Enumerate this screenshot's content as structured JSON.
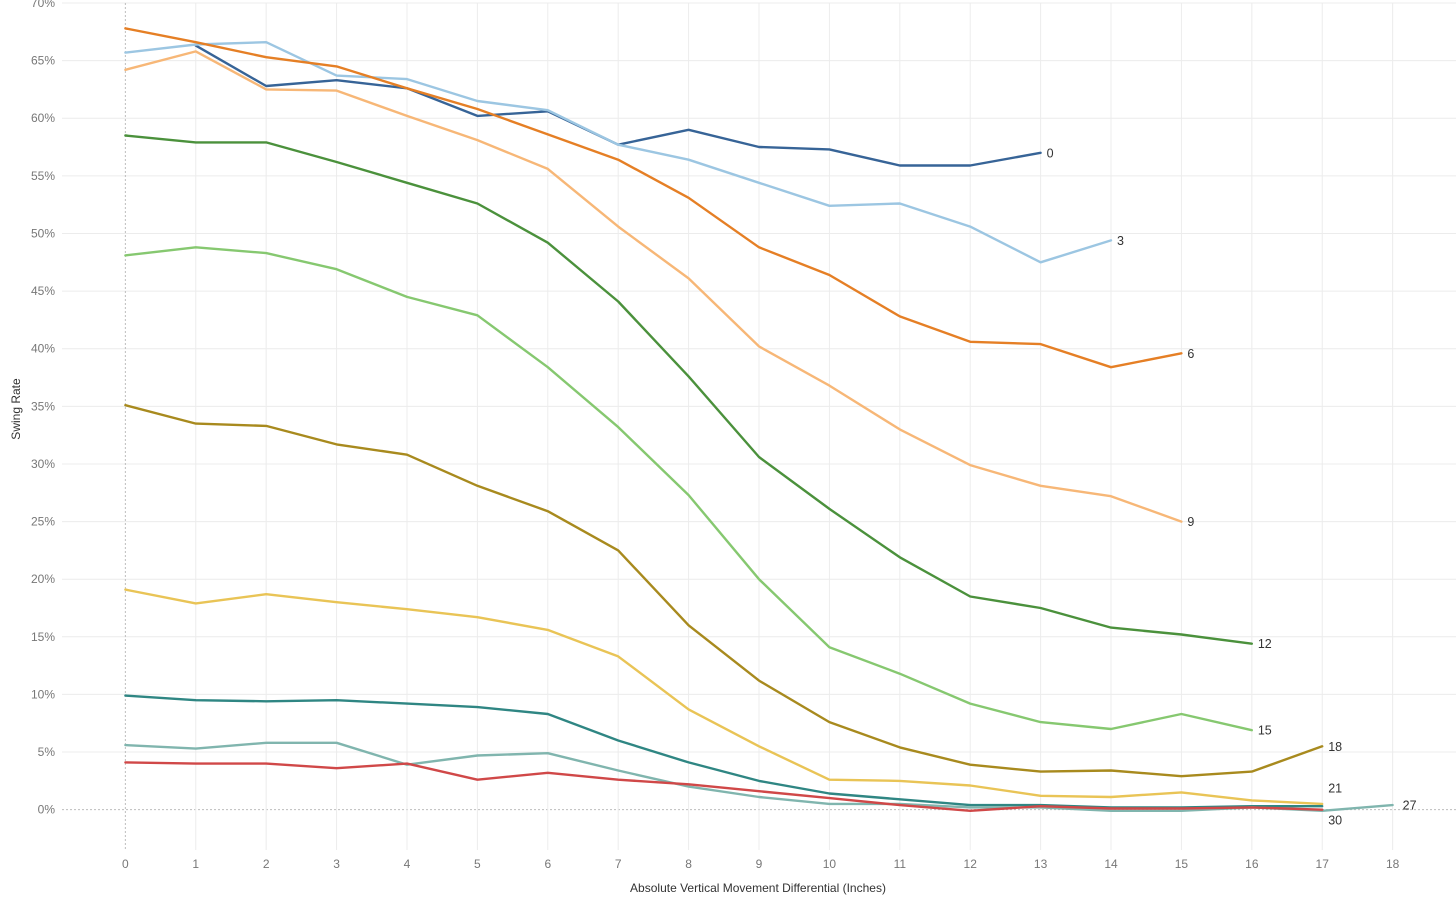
{
  "chart_data": {
    "type": "line",
    "title": "",
    "xlabel": "Absolute Vertical Movement Differential (Inches)",
    "ylabel": "Swing Rate",
    "x": [
      0,
      1,
      2,
      3,
      4,
      5,
      6,
      7,
      8,
      9,
      10,
      11,
      12,
      13,
      14,
      15,
      16,
      17,
      18
    ],
    "xlim": [
      -0.9,
      18.9
    ],
    "ylim": [
      -3.5,
      70
    ],
    "yticks": [
      0,
      5,
      10,
      15,
      20,
      25,
      30,
      35,
      40,
      45,
      50,
      55,
      60,
      65,
      70
    ],
    "ytick_labels": [
      "0%",
      "5%",
      "10%",
      "15%",
      "20%",
      "25%",
      "30%",
      "35%",
      "40%",
      "45%",
      "50%",
      "55%",
      "60%",
      "65%",
      "70%"
    ],
    "xtick_labels": [
      "0",
      "1",
      "2",
      "3",
      "4",
      "5",
      "6",
      "7",
      "8",
      "9",
      "10",
      "11",
      "12",
      "13",
      "14",
      "15",
      "16",
      "17",
      "18"
    ],
    "grid": true,
    "legend": "none",
    "series": [
      {
        "name": "0",
        "color": "#376497",
        "x": [
          1,
          2,
          3,
          4,
          5,
          6,
          7,
          8,
          9,
          10,
          11,
          12,
          13
        ],
        "values": [
          66.3,
          62.8,
          63.3,
          62.6,
          60.2,
          60.6,
          57.7,
          59.0,
          57.5,
          57.3,
          55.9,
          55.9,
          57.0
        ]
      },
      {
        "name": "3",
        "color": "#9cc6e2",
        "x": [
          0,
          1,
          2,
          3,
          4,
          5,
          6,
          7,
          8,
          9,
          10,
          11,
          12,
          13,
          14
        ],
        "values": [
          65.7,
          66.4,
          66.6,
          63.7,
          63.4,
          61.5,
          60.7,
          57.7,
          56.4,
          54.4,
          52.4,
          52.6,
          50.6,
          47.5,
          49.4
        ]
      },
      {
        "name": "6",
        "color": "#e57f25",
        "x": [
          0,
          1,
          2,
          3,
          4,
          5,
          6,
          7,
          8,
          9,
          10,
          11,
          12,
          13,
          14,
          15
        ],
        "values": [
          67.8,
          66.6,
          65.3,
          64.5,
          62.6,
          60.8,
          58.6,
          56.4,
          53.1,
          48.8,
          46.4,
          42.8,
          40.6,
          40.4,
          38.4,
          39.6
        ]
      },
      {
        "name": "9",
        "color": "#f7b777",
        "x": [
          0,
          1,
          2,
          3,
          4,
          5,
          6,
          7,
          8,
          9,
          10,
          11,
          12,
          13,
          14,
          15
        ],
        "values": [
          64.2,
          65.8,
          62.5,
          62.4,
          60.2,
          58.1,
          55.6,
          50.6,
          46.1,
          40.2,
          36.8,
          33.0,
          29.9,
          28.1,
          27.2,
          25.0
        ]
      },
      {
        "name": "12",
        "color": "#4b913c",
        "x": [
          0,
          1,
          2,
          3,
          4,
          5,
          6,
          7,
          8,
          9,
          10,
          11,
          12,
          13,
          14,
          15,
          16
        ],
        "values": [
          58.5,
          57.9,
          57.9,
          56.2,
          54.4,
          52.6,
          49.2,
          44.1,
          37.6,
          30.6,
          26.1,
          21.9,
          18.5,
          17.5,
          15.8,
          15.2,
          14.4
        ]
      },
      {
        "name": "15",
        "color": "#86c870",
        "x": [
          0,
          1,
          2,
          3,
          4,
          5,
          6,
          7,
          8,
          9,
          10,
          11,
          12,
          13,
          14,
          15,
          16
        ],
        "values": [
          48.1,
          48.8,
          48.3,
          46.9,
          44.5,
          42.9,
          38.4,
          33.2,
          27.3,
          20.0,
          14.1,
          11.8,
          9.2,
          7.6,
          7.0,
          8.3,
          6.9
        ]
      },
      {
        "name": "18",
        "color": "#a88a1e",
        "x": [
          0,
          1,
          2,
          3,
          4,
          5,
          6,
          7,
          8,
          9,
          10,
          11,
          12,
          13,
          14,
          15,
          16,
          17
        ],
        "values": [
          35.1,
          33.5,
          33.3,
          31.7,
          30.8,
          28.1,
          25.9,
          22.5,
          16.0,
          11.2,
          7.6,
          5.4,
          3.9,
          3.3,
          3.4,
          2.9,
          3.3,
          5.5
        ]
      },
      {
        "name": "21",
        "color": "#e9c456",
        "x": [
          0,
          1,
          2,
          3,
          4,
          5,
          6,
          7,
          8,
          9,
          10,
          11,
          12,
          13,
          14,
          15,
          16,
          17
        ],
        "values": [
          19.1,
          17.9,
          18.7,
          18.0,
          17.4,
          16.7,
          15.6,
          13.3,
          8.7,
          5.5,
          2.6,
          2.5,
          2.1,
          1.2,
          1.1,
          1.5,
          0.8,
          0.5
        ]
      },
      {
        "name": "30",
        "color": "#2f8683",
        "x": [
          0,
          1,
          2,
          3,
          4,
          5,
          6,
          7,
          8,
          9,
          10,
          11,
          12,
          13,
          14,
          15,
          16,
          17
        ],
        "values": [
          9.9,
          9.5,
          9.4,
          9.5,
          9.2,
          8.9,
          8.3,
          6.0,
          4.1,
          2.5,
          1.4,
          0.9,
          0.4,
          0.4,
          0.2,
          0.2,
          0.3,
          0.3
        ]
      },
      {
        "name": "27",
        "color": "#80b5ae",
        "x": [
          0,
          1,
          2,
          3,
          4,
          5,
          6,
          7,
          8,
          9,
          10,
          11,
          12,
          13,
          14,
          15,
          16,
          17,
          18
        ],
        "values": [
          5.6,
          5.3,
          5.8,
          5.8,
          3.9,
          4.7,
          4.9,
          3.4,
          2.0,
          1.1,
          0.5,
          0.5,
          0.2,
          0.2,
          -0.1,
          -0.1,
          0.2,
          -0.1,
          0.4
        ]
      },
      {
        "name": "",
        "color": "#d04848",
        "x": [
          0,
          1,
          2,
          3,
          4,
          5,
          6,
          7,
          8,
          9,
          10,
          11,
          12,
          13,
          14,
          15,
          16,
          17
        ],
        "values": [
          4.1,
          4.0,
          4.0,
          3.6,
          4.0,
          2.6,
          3.2,
          2.6,
          2.2,
          1.6,
          1.0,
          0.4,
          -0.1,
          0.3,
          0.1,
          0.1,
          0.2,
          0.0
        ]
      }
    ]
  }
}
